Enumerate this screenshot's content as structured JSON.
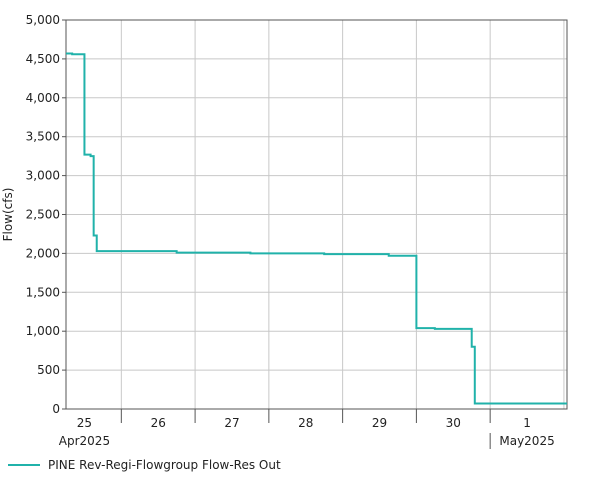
{
  "chart_data": {
    "type": "line",
    "ylabel": "Flow(cfs)",
    "ylim": [
      0,
      5000
    ],
    "y_ticks": [
      "0",
      "500",
      "1,000",
      "1,500",
      "2,000",
      "2,500",
      "3,000",
      "3,500",
      "4,000",
      "4,500",
      "5,000"
    ],
    "y_tick_values": [
      0,
      500,
      1000,
      1500,
      2000,
      2500,
      3000,
      3500,
      4000,
      4500,
      5000
    ],
    "xlim": [
      "2025-04-24T18:00",
      "2025-05-01T13:00"
    ],
    "x_ticks": [
      "25",
      "26",
      "27",
      "28",
      "29",
      "30",
      "1"
    ],
    "x_tick_dates": [
      "2025-04-25",
      "2025-04-26",
      "2025-04-27",
      "2025-04-28",
      "2025-04-29",
      "2025-04-30",
      "2025-05-01"
    ],
    "x_period_labels": [
      {
        "text": "Apr2025",
        "date": "2025-04-25"
      },
      {
        "text": "May2025",
        "date": "2025-05-01"
      }
    ],
    "month_boundary": "2025-04-30T12:00",
    "grid": true,
    "legend_position": "bottom-left",
    "series": [
      {
        "name": "PINE Rev-Regi-Flowgroup Flow-Res Out",
        "color": "#20b2aa",
        "step": true,
        "points": [
          [
            "2025-04-24T18:00",
            4570
          ],
          [
            "2025-04-24T20:00",
            4560
          ],
          [
            "2025-04-25T00:00",
            3270
          ],
          [
            "2025-04-25T02:00",
            3250
          ],
          [
            "2025-04-25T03:00",
            2230
          ],
          [
            "2025-04-25T04:00",
            2030
          ],
          [
            "2025-04-26T06:00",
            2010
          ],
          [
            "2025-04-27T06:00",
            2000
          ],
          [
            "2025-04-28T06:00",
            1990
          ],
          [
            "2025-04-29T03:00",
            1970
          ],
          [
            "2025-04-29T12:00",
            1040
          ],
          [
            "2025-04-29T18:00",
            1030
          ],
          [
            "2025-04-30T06:00",
            800
          ],
          [
            "2025-04-30T07:00",
            70
          ],
          [
            "2025-05-01T13:00",
            70
          ]
        ]
      }
    ]
  }
}
